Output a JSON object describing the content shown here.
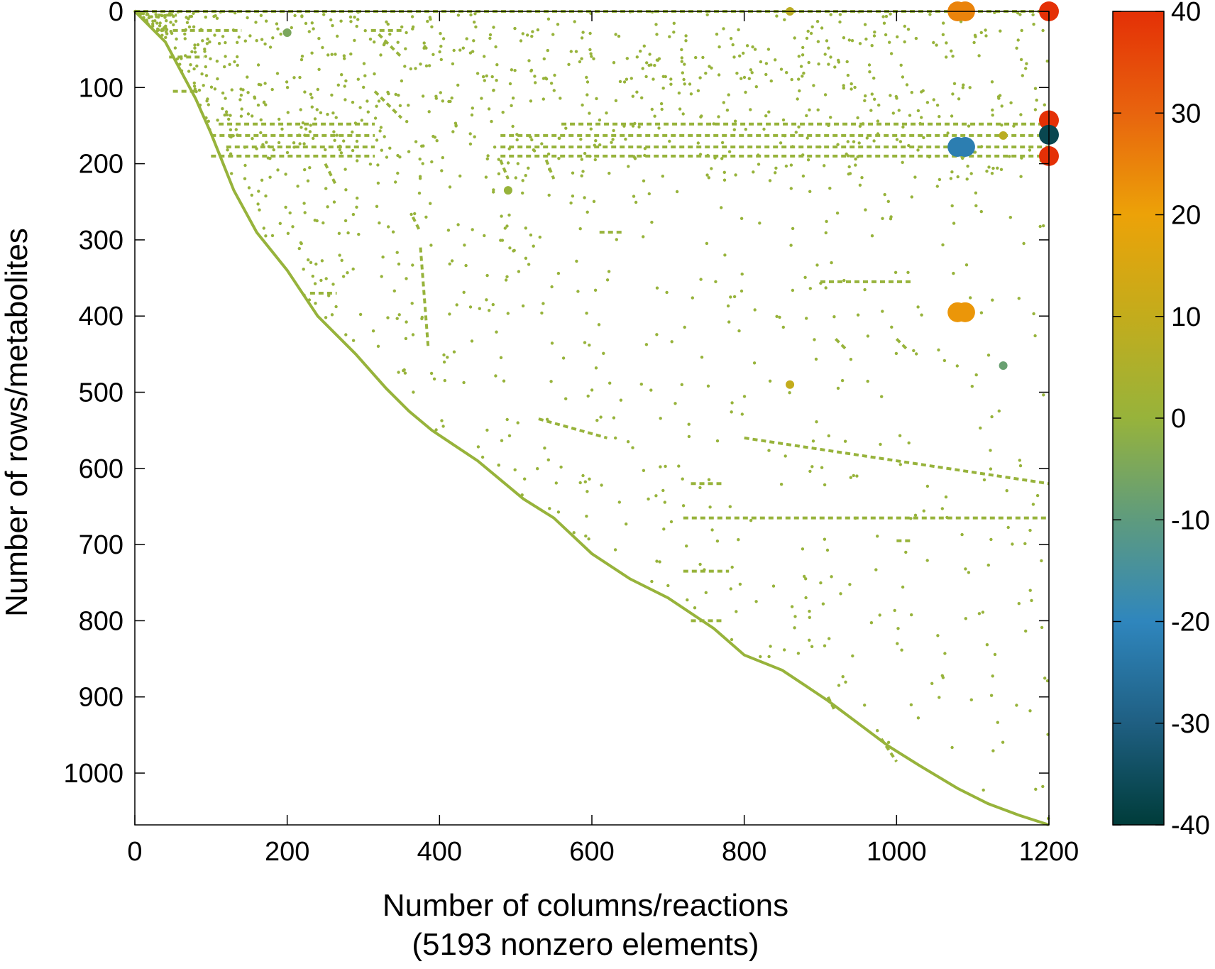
{
  "chart_data": {
    "type": "scatter",
    "title": "",
    "xlabel": "Number of columns/reactions",
    "xlabel_line2": "(5193 nonzero elements)",
    "ylabel": "Number of rows/metabolites",
    "xlim": [
      0,
      1200
    ],
    "ylim": [
      0,
      1068
    ],
    "y_inverted": true,
    "x_ticks": [
      "0",
      "200",
      "400",
      "600",
      "800",
      "1000",
      "1200"
    ],
    "y_ticks": [
      "0",
      "100",
      "200",
      "300",
      "400",
      "500",
      "600",
      "700",
      "800",
      "900",
      "1000"
    ],
    "colorbar": {
      "range": [
        -40,
        40
      ],
      "ticks": [
        "40",
        "30",
        "20",
        "10",
        "0",
        "-10",
        "-20",
        "-30",
        "-40"
      ],
      "stops": [
        {
          "value": -40,
          "color": "#003c3a"
        },
        {
          "value": -30,
          "color": "#1f5f82"
        },
        {
          "value": -20,
          "color": "#2f86bd"
        },
        {
          "value": -10,
          "color": "#5e9b7e"
        },
        {
          "value": 0,
          "color": "#97b33b"
        },
        {
          "value": 10,
          "color": "#c3ac1c"
        },
        {
          "value": 20,
          "color": "#eca208"
        },
        {
          "value": 30,
          "color": "#e8640e"
        },
        {
          "value": 40,
          "color": "#e43006"
        }
      ]
    },
    "diagonal": [
      [
        0,
        0
      ],
      [
        40,
        40
      ],
      [
        80,
        115
      ],
      [
        100,
        160
      ],
      [
        130,
        235
      ],
      [
        160,
        290
      ],
      [
        200,
        340
      ],
      [
        240,
        400
      ],
      [
        290,
        450
      ],
      [
        330,
        495
      ],
      [
        360,
        525
      ],
      [
        390,
        550
      ],
      [
        450,
        590
      ],
      [
        510,
        640
      ],
      [
        550,
        665
      ],
      [
        600,
        712
      ],
      [
        650,
        745
      ],
      [
        700,
        770
      ],
      [
        760,
        810
      ],
      [
        800,
        845
      ],
      [
        850,
        865
      ],
      [
        880,
        885
      ],
      [
        910,
        905
      ],
      [
        950,
        935
      ],
      [
        990,
        965
      ],
      [
        1030,
        990
      ],
      [
        1080,
        1020
      ],
      [
        1120,
        1040
      ],
      [
        1160,
        1055
      ],
      [
        1200,
        1068
      ]
    ],
    "segments": [
      {
        "x1": 0,
        "y1": 0,
        "x2": 1200,
        "y2": 0,
        "value": 0
      },
      {
        "x1": 30,
        "y1": 5,
        "x2": 55,
        "y2": 5,
        "value": 0
      },
      {
        "x1": 50,
        "y1": 25,
        "x2": 140,
        "y2": 25,
        "value": 0
      },
      {
        "x1": 310,
        "y1": 25,
        "x2": 350,
        "y2": 25,
        "value": 0
      },
      {
        "x1": 45,
        "y1": 60,
        "x2": 90,
        "y2": 60,
        "value": 0
      },
      {
        "x1": 50,
        "y1": 105,
        "x2": 80,
        "y2": 105,
        "value": 0
      },
      {
        "x1": 110,
        "y1": 148,
        "x2": 315,
        "y2": 148,
        "value": 0
      },
      {
        "x1": 560,
        "y1": 148,
        "x2": 1200,
        "y2": 148,
        "value": 0
      },
      {
        "x1": 100,
        "y1": 163,
        "x2": 315,
        "y2": 163,
        "value": 0
      },
      {
        "x1": 480,
        "y1": 163,
        "x2": 1200,
        "y2": 163,
        "value": 0
      },
      {
        "x1": 120,
        "y1": 178,
        "x2": 315,
        "y2": 178,
        "value": 0
      },
      {
        "x1": 480,
        "y1": 178,
        "x2": 1200,
        "y2": 178,
        "value": 0
      },
      {
        "x1": 100,
        "y1": 190,
        "x2": 315,
        "y2": 190,
        "value": 0
      },
      {
        "x1": 480,
        "y1": 190,
        "x2": 1200,
        "y2": 190,
        "value": 0
      },
      {
        "x1": 315,
        "y1": 105,
        "x2": 350,
        "y2": 140,
        "value": 0
      },
      {
        "x1": 320,
        "y1": 30,
        "x2": 350,
        "y2": 60,
        "value": 0
      },
      {
        "x1": 480,
        "y1": 195,
        "x2": 490,
        "y2": 220,
        "value": 0
      },
      {
        "x1": 540,
        "y1": 195,
        "x2": 550,
        "y2": 220,
        "value": 0
      },
      {
        "x1": 250,
        "y1": 200,
        "x2": 265,
        "y2": 230,
        "value": 0
      },
      {
        "x1": 365,
        "y1": 270,
        "x2": 375,
        "y2": 290,
        "value": 0
      },
      {
        "x1": 375,
        "y1": 310,
        "x2": 385,
        "y2": 440,
        "value": 0
      },
      {
        "x1": 530,
        "y1": 535,
        "x2": 620,
        "y2": 560,
        "value": 0
      },
      {
        "x1": 800,
        "y1": 560,
        "x2": 1200,
        "y2": 620,
        "value": 0
      },
      {
        "x1": 730,
        "y1": 620,
        "x2": 770,
        "y2": 620,
        "value": 0
      },
      {
        "x1": 720,
        "y1": 665,
        "x2": 1200,
        "y2": 665,
        "value": 0
      },
      {
        "x1": 920,
        "y1": 430,
        "x2": 935,
        "y2": 445,
        "value": 0
      },
      {
        "x1": 1000,
        "y1": 430,
        "x2": 1015,
        "y2": 445,
        "value": 0
      },
      {
        "x1": 900,
        "y1": 355,
        "x2": 1020,
        "y2": 355,
        "value": 0
      },
      {
        "x1": 610,
        "y1": 290,
        "x2": 640,
        "y2": 290,
        "value": 0
      },
      {
        "x1": 230,
        "y1": 370,
        "x2": 265,
        "y2": 370,
        "value": 0
      },
      {
        "x1": 720,
        "y1": 735,
        "x2": 780,
        "y2": 735,
        "value": 0
      },
      {
        "x1": 730,
        "y1": 800,
        "x2": 770,
        "y2": 800,
        "value": 0
      },
      {
        "x1": 1000,
        "y1": 695,
        "x2": 1020,
        "y2": 695,
        "value": 0
      },
      {
        "x1": 910,
        "y1": 900,
        "x2": 920,
        "y2": 920,
        "value": 0
      },
      {
        "x1": 980,
        "y1": 955,
        "x2": 1000,
        "y2": 985,
        "value": 0
      }
    ],
    "highlights": [
      {
        "x": 1200,
        "y": 0,
        "value": 40
      },
      {
        "x": 1080,
        "y": 0,
        "value": 25
      },
      {
        "x": 1090,
        "y": 0,
        "value": 25
      },
      {
        "x": 1200,
        "y": 143,
        "value": 40
      },
      {
        "x": 1200,
        "y": 162,
        "value": -37
      },
      {
        "x": 1200,
        "y": 190,
        "value": 40
      },
      {
        "x": 1080,
        "y": 178,
        "value": -22
      },
      {
        "x": 1090,
        "y": 178,
        "value": -22
      },
      {
        "x": 1080,
        "y": 395,
        "value": 22
      },
      {
        "x": 1090,
        "y": 395,
        "value": 22
      },
      {
        "x": 1140,
        "y": 465,
        "value": -8
      },
      {
        "x": 860,
        "y": 490,
        "value": 10
      },
      {
        "x": 860,
        "y": 0,
        "value": 8
      },
      {
        "x": 200,
        "y": 28,
        "value": -5
      },
      {
        "x": 1140,
        "y": 163,
        "value": 8
      },
      {
        "x": 490,
        "y": 235,
        "value": 0
      }
    ]
  }
}
